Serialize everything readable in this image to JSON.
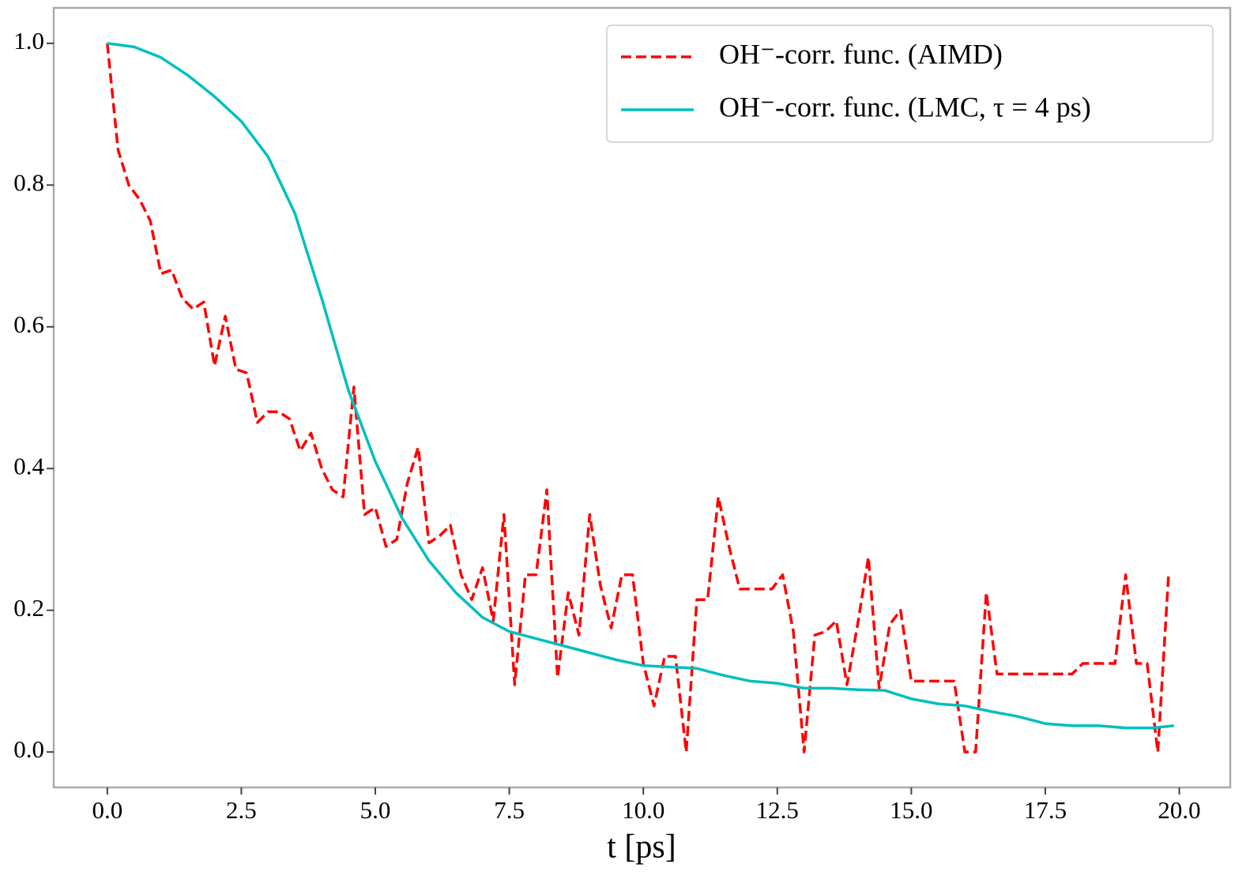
{
  "chart_data": {
    "type": "line",
    "xlabel": "t [ps]",
    "xlim": [
      -1.0,
      20.95
    ],
    "ylim": [
      -0.05,
      1.05
    ],
    "xticks": [
      {
        "value": 0,
        "label": "0.0"
      },
      2.5,
      {
        "value": 5,
        "label": "5.0"
      },
      7.5,
      {
        "value": 10,
        "label": "10.0"
      },
      12.5,
      {
        "value": 15,
        "label": "15.0"
      },
      17.5,
      {
        "value": 20,
        "label": "20.0"
      }
    ],
    "yticks": [
      {
        "value": 0,
        "label": "0.0"
      },
      0.2,
      0.4,
      0.6,
      0.8,
      {
        "value": 1,
        "label": "1.0"
      }
    ],
    "grid": false,
    "legend": "upper right",
    "series": [
      {
        "name": "OH⁻-corr. func. (AIMD)",
        "color": "#ff0000",
        "linestyle": "dashed",
        "x": [
          0,
          0.2,
          0.4,
          0.6,
          0.8,
          1.0,
          1.2,
          1.4,
          1.6,
          1.8,
          2.0,
          2.2,
          2.4,
          2.6,
          2.8,
          3.0,
          3.2,
          3.4,
          3.6,
          3.8,
          4.0,
          4.2,
          4.4,
          4.6,
          4.8,
          5.0,
          5.2,
          5.4,
          5.6,
          5.8,
          6.0,
          6.2,
          6.4,
          6.6,
          6.8,
          7.0,
          7.2,
          7.4,
          7.6,
          7.8,
          8.0,
          8.2,
          8.4,
          8.6,
          8.8,
          9.0,
          9.2,
          9.4,
          9.6,
          9.8,
          10.0,
          10.2,
          10.4,
          10.6,
          10.8,
          11.0,
          11.2,
          11.4,
          11.6,
          11.8,
          12.0,
          12.2,
          12.4,
          12.6,
          12.8,
          13.0,
          13.2,
          13.4,
          13.6,
          13.8,
          14.0,
          14.2,
          14.4,
          14.6,
          14.8,
          15.0,
          15.2,
          15.4,
          15.6,
          15.8,
          16.0,
          16.2,
          16.4,
          16.6,
          16.8,
          17.0,
          17.2,
          17.4,
          17.6,
          17.8,
          18.0,
          18.2,
          18.4,
          18.6,
          18.8,
          19.0,
          19.2,
          19.4,
          19.6,
          19.8
        ],
        "values": [
          1.0,
          0.85,
          0.8,
          0.78,
          0.75,
          0.675,
          0.68,
          0.64,
          0.625,
          0.635,
          0.545,
          0.615,
          0.54,
          0.535,
          0.465,
          0.48,
          0.48,
          0.47,
          0.425,
          0.45,
          0.4,
          0.37,
          0.36,
          0.515,
          0.335,
          0.345,
          0.29,
          0.3,
          0.38,
          0.43,
          0.295,
          0.305,
          0.32,
          0.25,
          0.215,
          0.26,
          0.185,
          0.335,
          0.095,
          0.25,
          0.25,
          0.37,
          0.105,
          0.225,
          0.165,
          0.335,
          0.235,
          0.175,
          0.25,
          0.25,
          0.125,
          0.065,
          0.135,
          0.135,
          0.0,
          0.215,
          0.215,
          0.36,
          0.29,
          0.23,
          0.23,
          0.23,
          0.23,
          0.25,
          0.17,
          0.0,
          0.165,
          0.17,
          0.185,
          0.095,
          0.18,
          0.275,
          0.09,
          0.18,
          0.2,
          0.1,
          0.1,
          0.1,
          0.1,
          0.1,
          0.0,
          0.0,
          0.225,
          0.11,
          0.11,
          0.11,
          0.11,
          0.11,
          0.11,
          0.11,
          0.11,
          0.125,
          0.125,
          0.125,
          0.125,
          0.25,
          0.125,
          0.125,
          0.0,
          0.25
        ]
      },
      {
        "name": "OH⁻-corr. func. (LMC, τ = 4 ps)",
        "color": "#00bfbf",
        "linestyle": "solid",
        "x": [
          0,
          0.5,
          1.0,
          1.5,
          2.0,
          2.5,
          3.0,
          3.5,
          4.0,
          4.5,
          5.0,
          5.5,
          6.0,
          6.5,
          7.0,
          7.5,
          8.0,
          8.5,
          9.0,
          9.5,
          10.0,
          10.5,
          11.0,
          11.5,
          12.0,
          12.5,
          13.0,
          13.5,
          14.0,
          14.5,
          15.0,
          15.5,
          16.0,
          16.5,
          17.0,
          17.5,
          18.0,
          18.5,
          19.0,
          19.5,
          19.9
        ],
        "values": [
          1.0,
          0.995,
          0.98,
          0.955,
          0.925,
          0.89,
          0.84,
          0.76,
          0.64,
          0.51,
          0.41,
          0.33,
          0.27,
          0.225,
          0.19,
          0.17,
          0.16,
          0.15,
          0.14,
          0.13,
          0.122,
          0.12,
          0.118,
          0.108,
          0.1,
          0.097,
          0.09,
          0.09,
          0.088,
          0.087,
          0.075,
          0.068,
          0.065,
          0.057,
          0.05,
          0.04,
          0.037,
          0.037,
          0.034,
          0.034,
          0.037
        ]
      }
    ]
  }
}
